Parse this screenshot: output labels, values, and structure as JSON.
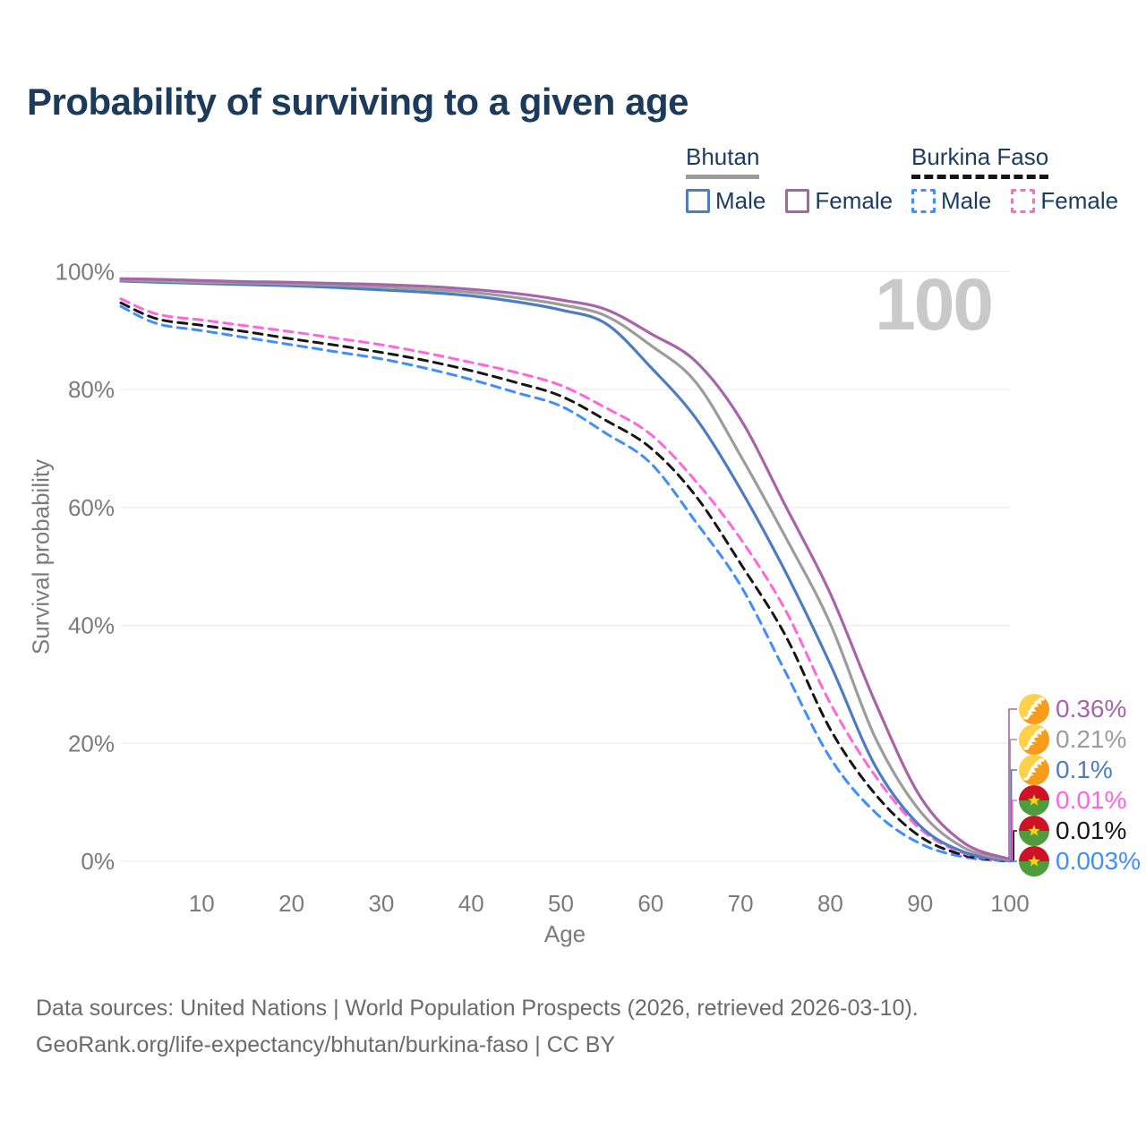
{
  "title": "Probability of surviving to a given age",
  "legend": {
    "groups": [
      {
        "name": "Bhutan",
        "style": "solid",
        "rule_color": "#9c9c9c",
        "items": [
          {
            "label": "Male",
            "color": "#4d7cc2"
          },
          {
            "label": "Female",
            "color": "#a963ab"
          }
        ]
      },
      {
        "name": "Burkina Faso",
        "style": "dashed",
        "rule_color": "#161616",
        "items": [
          {
            "label": "Male",
            "color": "#3f8efc"
          },
          {
            "label": "Female",
            "color": "#ff66dd"
          }
        ]
      }
    ]
  },
  "chart_data": {
    "type": "line",
    "title": "Probability of surviving to a given age",
    "xlabel": "Age",
    "ylabel": "Survival probability",
    "xlim": [
      0,
      110
    ],
    "ylim": [
      0,
      100
    ],
    "grid": "horizontal",
    "watermark": "100",
    "x_ticks": [
      10,
      20,
      30,
      40,
      50,
      60,
      70,
      80,
      90,
      100
    ],
    "y_ticks": [
      {
        "label": "0%",
        "value": 0
      },
      {
        "label": "20%",
        "value": 20
      },
      {
        "label": "40%",
        "value": 40
      },
      {
        "label": "60%",
        "value": 60
      },
      {
        "label": "80%",
        "value": 80
      },
      {
        "label": "100%",
        "value": 100
      }
    ],
    "ages": [
      1,
      5,
      10,
      15,
      20,
      25,
      30,
      35,
      40,
      45,
      50,
      55,
      60,
      65,
      70,
      75,
      80,
      85,
      90,
      95,
      100
    ],
    "series": [
      {
        "name": "Bhutan Female",
        "country": "bhutan",
        "color": "#a963ab",
        "dash": false,
        "end_label": "0.36%",
        "values": [
          98.8,
          98.7,
          98.5,
          98.3,
          98.2,
          98.0,
          97.8,
          97.5,
          97.0,
          96.3,
          95.2,
          93.6,
          89.5,
          84.8,
          75.0,
          60.3,
          45.4,
          27.0,
          11.0,
          3.0,
          0.36
        ]
      },
      {
        "name": "Bhutan (both sexes)",
        "country": "bhutan",
        "color": "#9c9c9c",
        "dash": false,
        "end_label": "0.21%",
        "values": [
          98.6,
          98.4,
          98.2,
          98.1,
          97.9,
          97.7,
          97.4,
          97.0,
          96.5,
          95.6,
          94.4,
          92.5,
          87.5,
          81.3,
          68.8,
          55.0,
          40.3,
          21.0,
          8.5,
          2.2,
          0.21
        ]
      },
      {
        "name": "Bhutan Male",
        "country": "bhutan",
        "color": "#4d7cc2",
        "dash": false,
        "end_label": "0.1%",
        "values": [
          98.4,
          98.2,
          98.0,
          97.8,
          97.6,
          97.3,
          96.9,
          96.5,
          95.9,
          94.9,
          93.5,
          91.2,
          83.8,
          75.2,
          63.1,
          49.1,
          33.4,
          16.2,
          6.0,
          1.5,
          0.1
        ]
      },
      {
        "name": "Burkina Faso Female",
        "country": "burkina_faso",
        "color": "#ff66dd",
        "dash": true,
        "end_label": "0.01%",
        "values": [
          95.4,
          92.8,
          91.8,
          90.8,
          89.8,
          88.7,
          87.6,
          86.2,
          84.6,
          82.9,
          80.7,
          76.9,
          72.4,
          64.5,
          54.7,
          42.6,
          26.8,
          14.5,
          5.5,
          1.3,
          0.01
        ]
      },
      {
        "name": "Burkina Faso (both sexes)",
        "country": "burkina_faso",
        "color": "#161616",
        "dash": true,
        "end_label": "0.01%",
        "values": [
          94.7,
          92.0,
          90.9,
          89.8,
          88.6,
          87.5,
          86.3,
          84.9,
          83.2,
          81.2,
          78.9,
          74.8,
          70.1,
          62.0,
          50.5,
          38.3,
          22.4,
          11.4,
          4.2,
          1.0,
          0.01
        ]
      },
      {
        "name": "Burkina Faso Male",
        "country": "burkina_faso",
        "color": "#3f8efc",
        "dash": true,
        "end_label": "0.003%",
        "values": [
          94.1,
          91.2,
          90.0,
          88.8,
          87.6,
          86.4,
          85.2,
          83.6,
          81.7,
          79.5,
          77.2,
          72.6,
          67.5,
          57.6,
          46.8,
          32.1,
          17.5,
          8.3,
          3.0,
          0.7,
          0.003
        ]
      }
    ]
  },
  "footer": {
    "line1": "Data sources: United Nations | World Population Prospects (2026, retrieved 2026-03-10).",
    "line2": "GeoRank.org/life-expectancy/bhutan/burkina-faso | CC BY"
  }
}
